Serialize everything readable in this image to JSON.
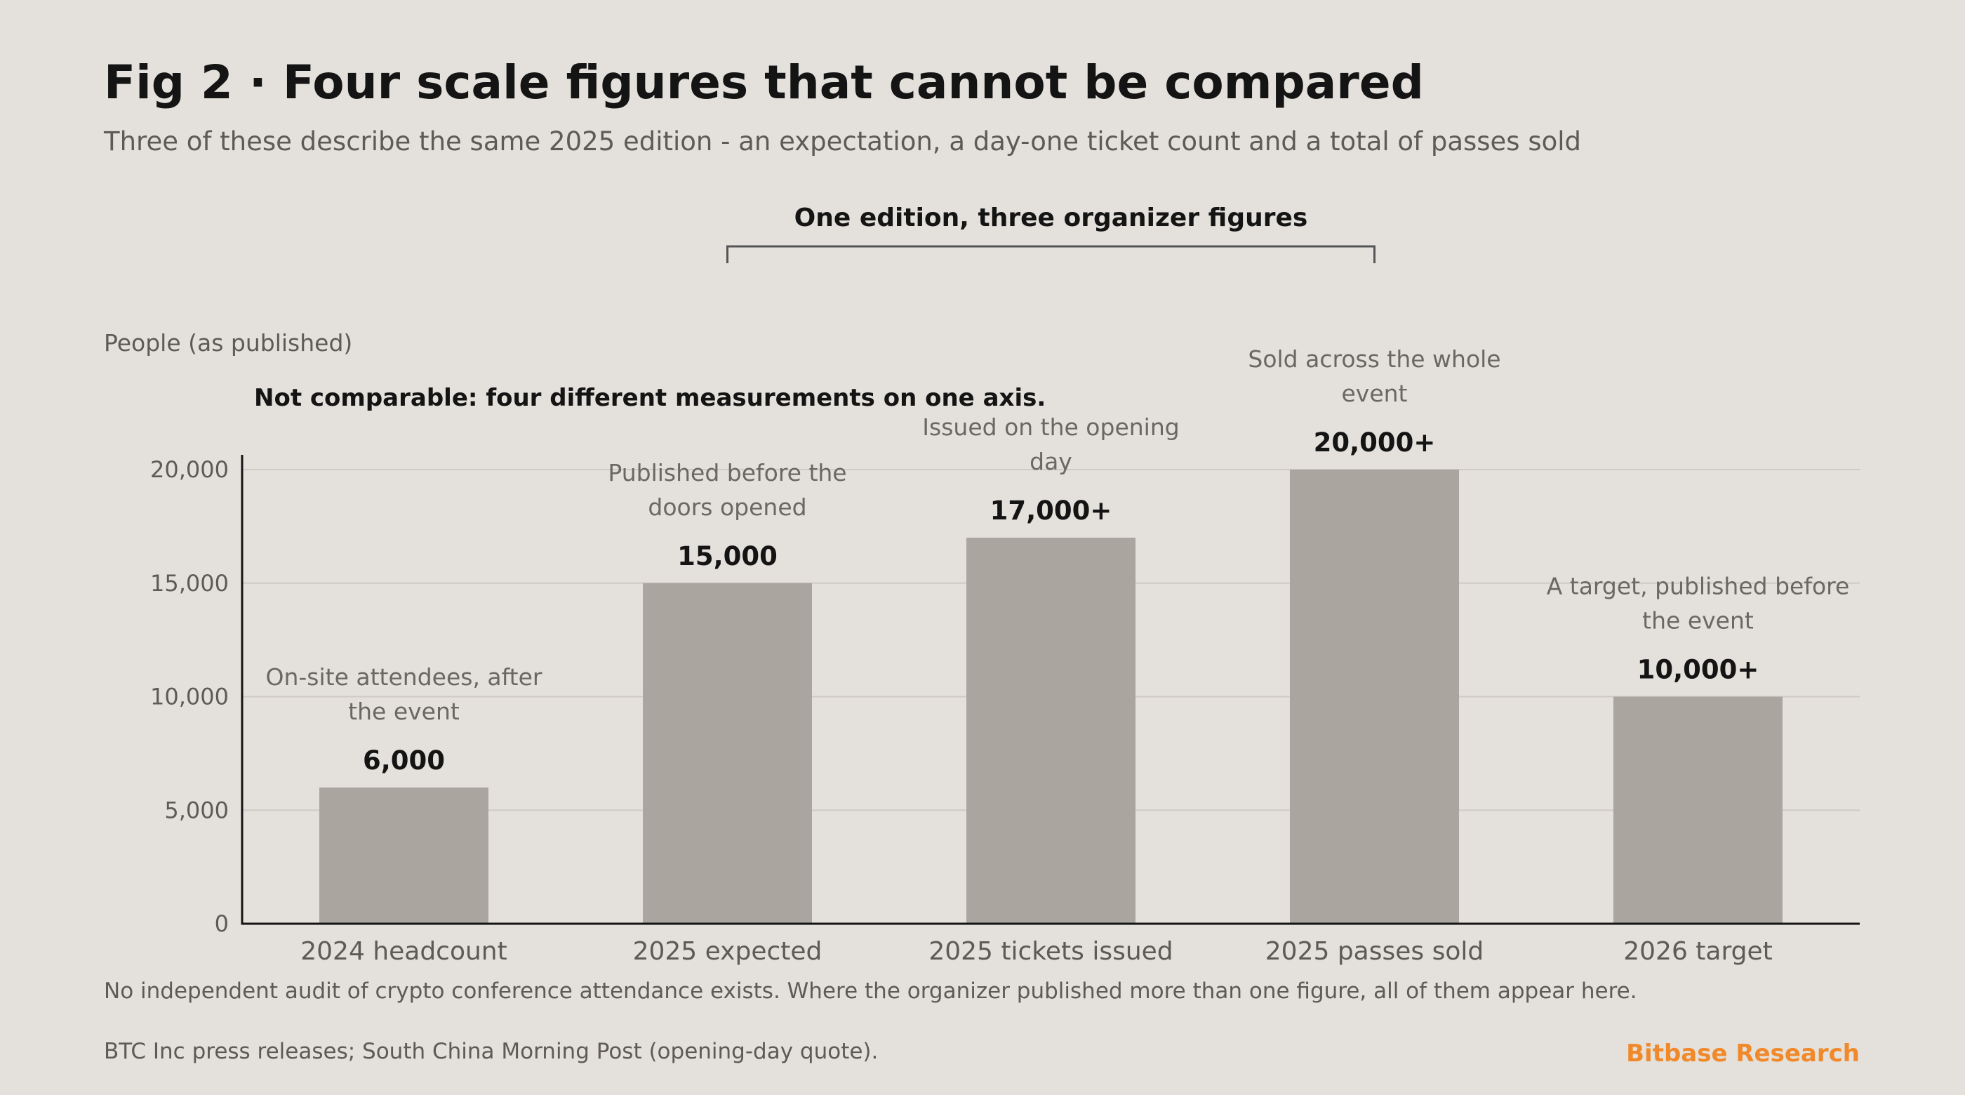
{
  "chart_data": {
    "type": "bar",
    "title": "Fig 2 · Four scale figures that cannot be compared",
    "subtitle": "Three of these describe the same 2025 edition - an expectation, a day-one ticket count and a total of passes sold",
    "ylabel": "People (as published)",
    "xlabel": "",
    "ylim": [
      0,
      20000
    ],
    "yticks": [
      0,
      5000,
      10000,
      15000,
      20000
    ],
    "ytick_labels": [
      "0",
      "5,000",
      "10,000",
      "15,000",
      "20,000"
    ],
    "grid": true,
    "categories": [
      "2024 headcount",
      "2025 expected",
      "2025 tickets issued",
      "2025 passes sold",
      "2026 target"
    ],
    "values": [
      6000,
      15000,
      17000,
      20000,
      10000
    ],
    "value_labels": [
      "6,000",
      "15,000",
      "17,000+",
      "20,000+",
      "10,000+"
    ],
    "notes": [
      [
        "On-site attendees, after",
        "the event"
      ],
      [
        "Published before the",
        "doors opened"
      ],
      [
        "Issued on the opening",
        "day"
      ],
      [
        "Sold across the whole",
        "event"
      ],
      [
        "A target, published before",
        "the event"
      ]
    ],
    "bar_color": "#aaa59f",
    "annotations": {
      "bracket_label": "One edition, three organizer figures",
      "bracket_span": [
        "2025 expected",
        "2025 passes sold"
      ],
      "callout": "Not comparable: four different measurements on one axis."
    }
  },
  "footer": {
    "footnote": "No independent audit of crypto conference attendance exists. Where the organizer published more than one figure, all of them appear here.",
    "source": "BTC Inc press releases; South China Morning Post (opening-day quote).",
    "brand": "Bitbase Research",
    "brand_color": "#f0892a"
  }
}
